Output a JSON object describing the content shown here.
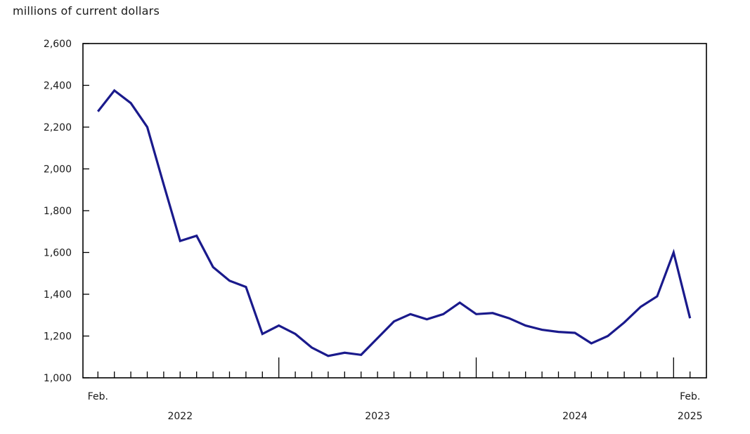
{
  "page": {
    "title": "millions of current dollars"
  },
  "chart_data": {
    "type": "line",
    "title": "millions of current dollars",
    "xlabel": "",
    "ylabel": "millions of current dollars",
    "line_color": "#1A1A8C",
    "axis_color": "#000000",
    "grid": false,
    "legend": "none",
    "ylim": [
      1000,
      2600
    ],
    "y_ticks": [
      1000,
      1200,
      1400,
      1600,
      1800,
      2000,
      2200,
      2400,
      2600
    ],
    "y_tick_labels": [
      "1,000",
      "1,200",
      "1,400",
      "1,600",
      "1,800",
      "2,000",
      "2,200",
      "2,400",
      "2,600"
    ],
    "categories": [
      "Feb. 2022",
      "Mar. 2022",
      "Apr. 2022",
      "May 2022",
      "Jun. 2022",
      "Jul. 2022",
      "Aug. 2022",
      "Sep. 2022",
      "Oct. 2022",
      "Nov. 2022",
      "Dec. 2022",
      "Jan. 2023",
      "Feb. 2023",
      "Mar. 2023",
      "Apr. 2023",
      "May 2023",
      "Jun. 2023",
      "Jul. 2023",
      "Aug. 2023",
      "Sep. 2023",
      "Oct. 2023",
      "Nov. 2023",
      "Dec. 2023",
      "Jan. 2024",
      "Feb. 2024",
      "Mar. 2024",
      "Apr. 2024",
      "May 2024",
      "Jun. 2024",
      "Jul. 2024",
      "Aug. 2024",
      "Sep. 2024",
      "Oct. 2024",
      "Nov. 2024",
      "Dec. 2024",
      "Jan. 2025",
      "Feb. 2025"
    ],
    "values": [
      2275,
      2375,
      2315,
      2200,
      1925,
      1655,
      1680,
      1530,
      1465,
      1435,
      1210,
      1250,
      1210,
      1145,
      1105,
      1120,
      1110,
      1190,
      1270,
      1305,
      1280,
      1305,
      1360,
      1305,
      1310,
      1285,
      1250,
      1230,
      1220,
      1215,
      1165,
      1200,
      1265,
      1340,
      1390,
      1600,
      1285
    ],
    "x_axis": {
      "start_month_label": "Feb.",
      "year_labels": [
        "2022",
        "2023",
        "2024"
      ],
      "end_label_top": "Feb.",
      "end_label_bottom": "2025",
      "long_ticks_at": [
        "Jan. 2023",
        "Jan. 2024",
        "Jan. 2025"
      ]
    }
  }
}
